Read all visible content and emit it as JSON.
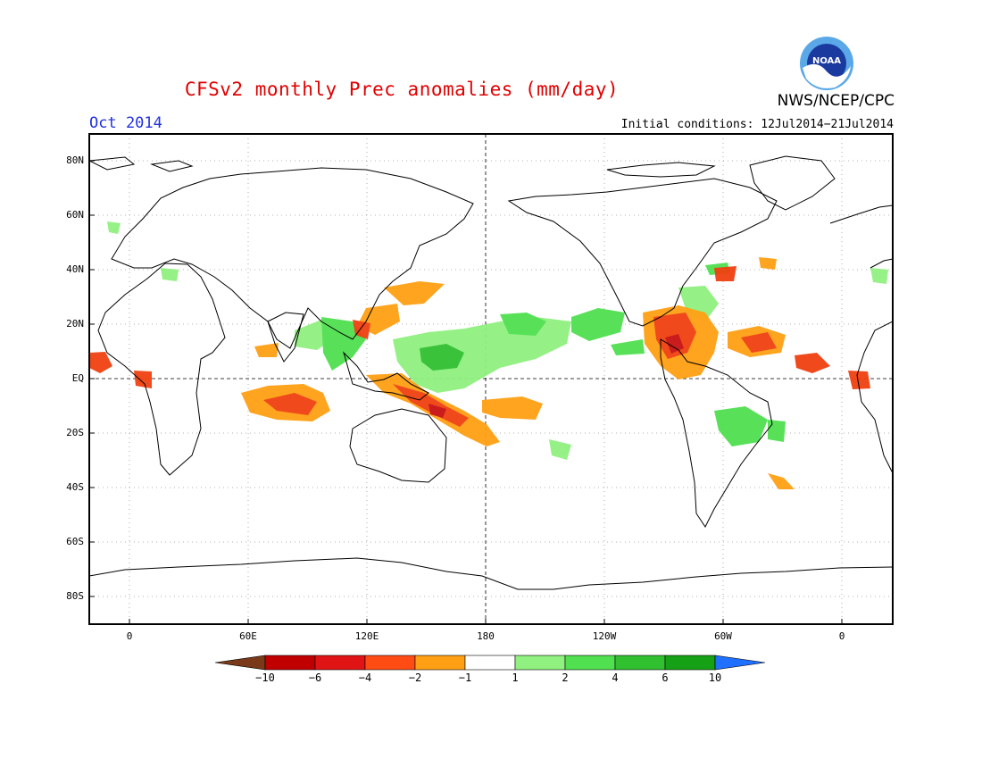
{
  "title": "CFSv2 monthly Prec anomalies (mm/day)",
  "valid_month": "Oct 2014",
  "initial_conditions": "Initial conditions: 12Jul2014−21Jul2014",
  "agency": "NWS/NCEP/CPC",
  "logo_text": "NOAA",
  "lat_labels": [
    "80N",
    "60N",
    "40N",
    "20N",
    "EQ",
    "20S",
    "40S",
    "60S",
    "80S"
  ],
  "lon_labels": [
    "0",
    "60E",
    "120E",
    "180",
    "120W",
    "60W",
    "0"
  ],
  "colorbar": {
    "labels": [
      "−10",
      "−6",
      "−4",
      "−2",
      "−1",
      "1",
      "2",
      "4",
      "6",
      "10"
    ],
    "colors": [
      "#7a3a1a",
      "#c00000",
      "#e01414",
      "#ff4c14",
      "#ffa014",
      "#ffffff",
      "#90f080",
      "#50e050",
      "#30c030",
      "#16a016",
      "#2070ff"
    ]
  },
  "anomaly_colors": {
    "dry_strong": "#c81010",
    "dry": "#f04010",
    "dry_weak": "#ffa014",
    "wet_weak": "#90f080",
    "wet": "#50e050",
    "wet_strong": "#20a020"
  }
}
